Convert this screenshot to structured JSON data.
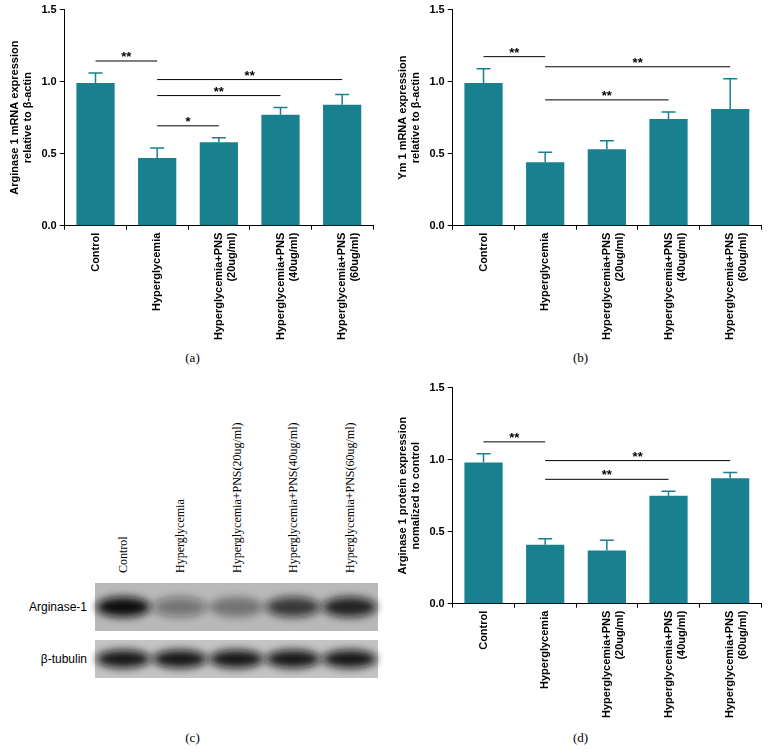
{
  "chart_data": [
    {
      "type": "bar",
      "caption": "(a)",
      "y_label": [
        "Arginase 1 mRNA expression",
        "relative to β-actin"
      ],
      "categories": [
        "Control",
        "Hyperglycemia",
        "Hyperglycemia+PNS (20ug/ml)",
        "Hyperglycemia+PNS (40ug/ml)",
        "Hyperglycemia+PNS (60ug/ml)"
      ],
      "values": [
        0.99,
        0.47,
        0.58,
        0.77,
        0.84
      ],
      "errors": [
        0.07,
        0.07,
        0.03,
        0.05,
        0.07
      ],
      "color": "#19808f",
      "ylim": [
        0,
        1.5
      ],
      "yticks": [
        {
          "value": 0,
          "label": "0.0"
        },
        0.5,
        {
          "value": 1,
          "label": "1.0"
        },
        1.5
      ],
      "grid": false,
      "annotations": [
        {
          "from": "Control",
          "to": "Hyperglycemia",
          "label": "**"
        },
        {
          "from": "Hyperglycemia",
          "to": "Hyperglycemia+PNS (20ug/ml)",
          "label": "*"
        },
        {
          "from": "Hyperglycemia",
          "to": "Hyperglycemia+PNS (40ug/ml)",
          "label": "**"
        },
        {
          "from": "Hyperglycemia",
          "to": "Hyperglycemia+PNS (60ug/ml)",
          "label": "**"
        }
      ]
    },
    {
      "type": "bar",
      "caption": "(b)",
      "y_label": [
        "Ym 1 mRNA expression",
        "relative to β-actin"
      ],
      "categories": [
        "Control",
        "Hyperglycemia",
        "Hyperglycemia+PNS (20ug/ml)",
        "Hyperglycemia+PNS (40ug/ml)",
        "Hyperglycemia+PNS (60ug/ml)"
      ],
      "values": [
        0.99,
        0.44,
        0.53,
        0.74,
        0.81
      ],
      "errors": [
        0.1,
        0.07,
        0.06,
        0.05,
        0.21
      ],
      "color": "#19808f",
      "ylim": [
        0,
        1.5
      ],
      "yticks": [
        {
          "value": 0,
          "label": "0.0"
        },
        0.5,
        {
          "value": 1,
          "label": "1.0"
        },
        1.5
      ],
      "grid": false,
      "annotations": [
        {
          "from": "Control",
          "to": "Hyperglycemia",
          "label": "**"
        },
        {
          "from": "Hyperglycemia",
          "to": "Hyperglycemia+PNS (40ug/ml)",
          "label": "**"
        },
        {
          "from": "Hyperglycemia",
          "to": "Hyperglycemia+PNS (60ug/ml)",
          "label": "**"
        }
      ]
    },
    {
      "type": "bar",
      "caption": "(d)",
      "y_label": [
        "Arginase 1 protein expression",
        "nomalized to control"
      ],
      "categories": [
        "Control",
        "Hyperglycemia",
        "Hyperglycemia+PNS (20ug/ml)",
        "Hyperglycemia+PNS (40ug/ml)",
        "Hyperglycemia+PNS (60ug/ml)"
      ],
      "values": [
        0.98,
        0.41,
        0.37,
        0.75,
        0.87
      ],
      "errors": [
        0.06,
        0.04,
        0.07,
        0.03,
        0.04
      ],
      "color": "#19808f",
      "ylim": [
        0,
        1.5
      ],
      "yticks": [
        {
          "value": 0,
          "label": "0.0"
        },
        0.5,
        {
          "value": 1,
          "label": "1.0"
        },
        1.5
      ],
      "grid": false,
      "annotations": [
        {
          "from": "Control",
          "to": "Hyperglycemia",
          "label": "**"
        },
        {
          "from": "Hyperglycemia",
          "to": "Hyperglycemia+PNS (40ug/ml)",
          "label": "**"
        },
        {
          "from": "Hyperglycemia",
          "to": "Hyperglycemia+PNS (60ug/ml)",
          "label": "**"
        }
      ]
    }
  ],
  "blot": {
    "caption": "(c)",
    "lanes": [
      "Control",
      "Hyperglycemia",
      "Hyperglycemia+PNS(20ug/ml)",
      "Hyperglycemia+PNS(40ug/ml)",
      "Hyperglycemia+PNS(60ug/ml)"
    ],
    "rows": [
      "Arginase-1",
      "β-tubulin"
    ]
  }
}
